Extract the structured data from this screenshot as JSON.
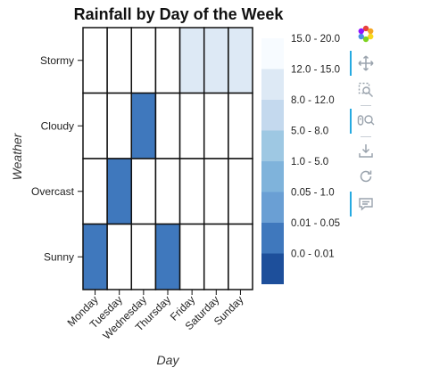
{
  "chart_data": {
    "type": "heatmap",
    "title": "Rainfall by Day of the Week",
    "xlabel": "Day",
    "ylabel": "Weather",
    "x_categories": [
      "Monday",
      "Tuesday",
      "Wednesday",
      "Thursday",
      "Friday",
      "Saturday",
      "Sunday"
    ],
    "y_categories": [
      "Stormy",
      "Cloudy",
      "Overcast",
      "Sunny"
    ],
    "cells": [
      {
        "x": "Friday",
        "y": "Stormy",
        "bin": 1
      },
      {
        "x": "Saturday",
        "y": "Stormy",
        "bin": 1
      },
      {
        "x": "Sunday",
        "y": "Stormy",
        "bin": 1
      },
      {
        "x": "Wednesday",
        "y": "Cloudy",
        "bin": 6
      },
      {
        "x": "Tuesday",
        "y": "Overcast",
        "bin": 6
      },
      {
        "x": "Monday",
        "y": "Sunny",
        "bin": 6
      },
      {
        "x": "Thursday",
        "y": "Sunny",
        "bin": 6
      }
    ],
    "legend": {
      "placement": "right",
      "bins": [
        {
          "label": "15.0 - 20.0",
          "color": "#f7fbff"
        },
        {
          "label": "12.0 - 15.0",
          "color": "#dde9f5"
        },
        {
          "label": "8.0 - 12.0",
          "color": "#c4d9ee"
        },
        {
          "label": "5.0 - 8.0",
          "color": "#9ec8e3"
        },
        {
          "label": "1.0 - 5.0",
          "color": "#7fb3db"
        },
        {
          "label": "0.05 - 1.0",
          "color": "#6a9fd4"
        },
        {
          "label": "0.01 - 0.05",
          "color": "#3f78bd"
        },
        {
          "label": "0.0 - 0.01",
          "color": "#1d4f9b"
        }
      ],
      "extra_bin_color": "#0f2f6b"
    },
    "empty_cell_color": "#ffffff",
    "grid": false
  },
  "toolbar": {
    "tools": [
      {
        "name": "bokeh-logo-icon",
        "active": false
      },
      {
        "name": "pan-icon",
        "active": true
      },
      {
        "name": "box-zoom-icon",
        "active": false
      },
      {
        "name": "wheel-zoom-icon",
        "active": true
      },
      {
        "name": "save-icon",
        "active": false
      },
      {
        "name": "reset-icon",
        "active": false
      },
      {
        "name": "hover-icon",
        "active": true
      }
    ]
  }
}
